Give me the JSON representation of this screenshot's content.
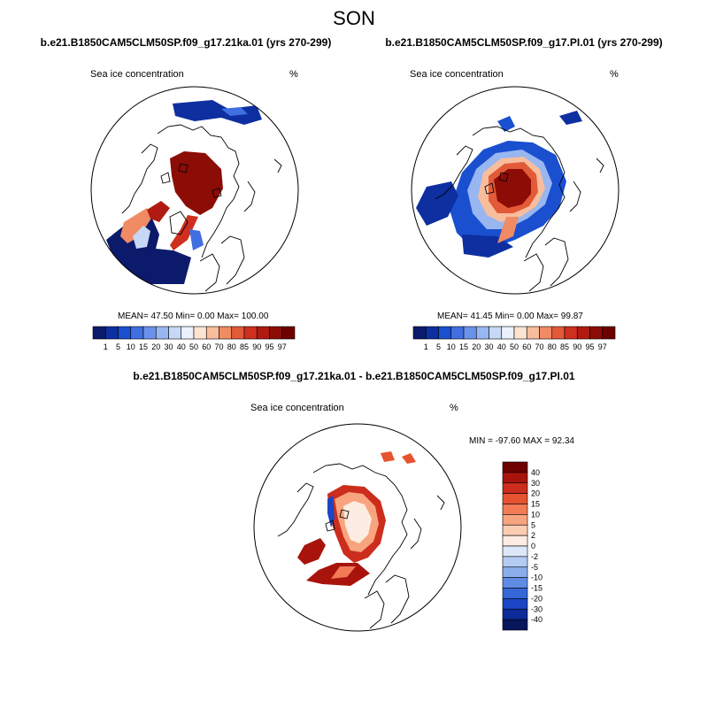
{
  "figure": {
    "season": "SON"
  },
  "panels": [
    {
      "id": "left",
      "case_title": "b.e21.B1850CAM5CLM50SP.f09_g17.21ka.01 (yrs 270-299)",
      "variable": "Sea ice concentration",
      "units": "%",
      "stats": "MEAN=  47.50  Min=   0.00  Max= 100.00"
    },
    {
      "id": "right",
      "case_title": "b.e21.B1850CAM5CLM50SP.f09_g17.PI.01 (yrs 270-299)",
      "variable": "Sea ice concentration",
      "units": "%",
      "stats": "MEAN=  41.45  Min=   0.00  Max=  99.87"
    },
    {
      "id": "diff",
      "case_title": "b.e21.B1850CAM5CLM50SP.f09_g17.21ka.01 - b.e21.B1850CAM5CLM50SP.f09_g17.PI.01",
      "variable": "Sea ice concentration",
      "units": "%",
      "stats": "MIN = -97.60 MAX =  92.34"
    }
  ],
  "colorbars": {
    "concentration": {
      "labels": [
        "1",
        "5",
        "10",
        "15",
        "20",
        "30",
        "40",
        "50",
        "60",
        "70",
        "80",
        "85",
        "90",
        "95",
        "97"
      ],
      "colors": [
        "#0b1a6b",
        "#0d2fa0",
        "#1a4fd0",
        "#3f6fe0",
        "#6a92ea",
        "#98b6f0",
        "#c6d8f6",
        "#eaf1fb",
        "#fde3d2",
        "#f8bd9d",
        "#f08b63",
        "#e25a38",
        "#cf2f1e",
        "#b01a10",
        "#8c0c06",
        "#6e0000"
      ]
    },
    "difference": {
      "labels": [
        "40",
        "30",
        "20",
        "15",
        "10",
        "5",
        "2",
        "0",
        "-2",
        "-5",
        "-10",
        "-15",
        "-20",
        "-30",
        "-40"
      ],
      "colors": [
        "#6e0000",
        "#a8140c",
        "#cc2d1c",
        "#e65331",
        "#f27b55",
        "#f8a47e",
        "#fccdb2",
        "#fdece1",
        "#dce8f8",
        "#b4ccf2",
        "#8aaeec",
        "#5f8be4",
        "#3567d8",
        "#1a45c4",
        "#0c2b98",
        "#08165c"
      ]
    }
  },
  "palette": {
    "land_line": "#000000",
    "ocean": "#ffffff"
  }
}
